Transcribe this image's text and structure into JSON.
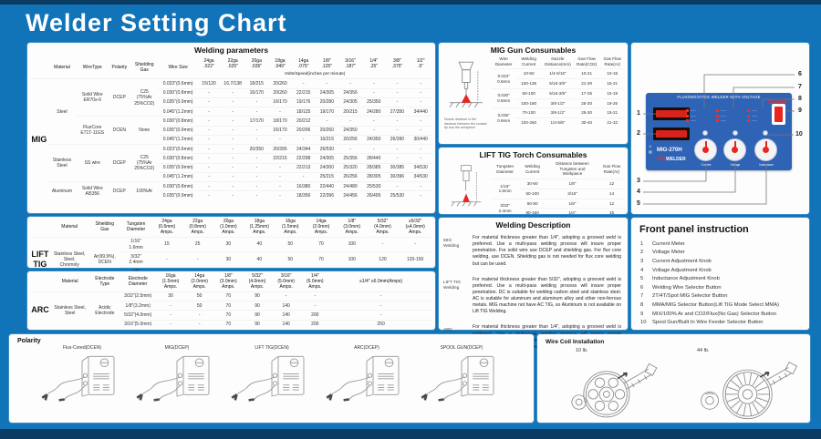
{
  "title": "Welder Setting Chart",
  "colors": {
    "background": "#1174b9",
    "panel": "#fdfdfe",
    "accent_red": "#e8251f",
    "machine_blue": "#2f63b5",
    "dark_strip": "#0a3c63"
  },
  "welding_parameters": {
    "title": "Welding parameters",
    "left_label": "MIG",
    "subheader": "Volts/Speed(inches per minute)",
    "base_headers": [
      "Material",
      "WireType",
      "Polarity",
      "Shielding\nGas",
      "Wire Size"
    ],
    "gauge_headers": [
      "24ga\n.022\"",
      "22ga\n.025\"",
      "20ga\n.035\"",
      "18ga\n.049\"",
      "14ga\n.075\"",
      "1/8\"\n.125\"",
      "3/16\"\n.187\"",
      "1/4\"\n.25\"",
      "3/8\"\n.375\"",
      "1/2\"\n.5\""
    ],
    "groups": [
      {
        "material": "Steel",
        "subgroups": [
          {
            "wire_type": "Solid Wire\nER70s-6",
            "polarity": "DCEP",
            "gas": "C25\n(75%Ar\n25%CO2)",
            "rows": [
              {
                "size": "0.023\"(0.6mm)",
                "values": [
                  "15/120",
                  "16.7/138",
                  "18/215",
                  "20/260",
                  "-",
                  "-",
                  "-",
                  "-",
                  "-",
                  "-"
                ]
              },
              {
                "size": "0.030\"(0.8mm)",
                "values": [
                  "-",
                  "-",
                  "16/170",
                  "20/260",
                  "22/215",
                  "24/305",
                  "24/356",
                  "-",
                  "-",
                  "-"
                ]
              },
              {
                "size": "0.035\"(0.9mm)",
                "values": [
                  "-",
                  "-",
                  "-",
                  "16/170",
                  "19/176",
                  "20/280",
                  "24/305",
                  "25/350",
                  "-",
                  "-"
                ]
              },
              {
                "size": "0.045\"(1.2mm)",
                "values": [
                  "-",
                  "-",
                  "-",
                  "-",
                  "18/125",
                  "19/170",
                  "20/215",
                  "24/280",
                  "27/350",
                  "34/440"
                ]
              }
            ]
          },
          {
            "wire_type": "FluxCore\nE71T-11GS",
            "polarity": "DCEN",
            "gas": "None",
            "rows": [
              {
                "size": "0.030\"(0.8mm)",
                "values": [
                  "-",
                  "-",
                  "17/170",
                  "18/170",
                  "20/212",
                  "-",
                  "-",
                  "-",
                  "-",
                  "-"
                ]
              },
              {
                "size": "0.035\"(0.9mm)",
                "values": [
                  "-",
                  "-",
                  "-",
                  "16/170",
                  "20/206",
                  "20/260",
                  "24/350",
                  "-",
                  "-",
                  "-"
                ]
              },
              {
                "size": "0.045\"(1.2mm)",
                "values": [
                  "-",
                  "-",
                  "-",
                  "-",
                  "-",
                  "16/215",
                  "20/256",
                  "24/350",
                  "26/390",
                  "30/440"
                ]
              }
            ]
          }
        ]
      },
      {
        "material": "Stainless\nSteel",
        "subgroups": [
          {
            "wire_type": "SS wire",
            "polarity": "DCEP",
            "gas": "C25\n(75%Ar\n25%CO2)",
            "rows": [
              {
                "size": "0.023\"(0.6mm)",
                "values": [
                  "-",
                  "-",
                  "20/350",
                  "20/395",
                  "24/344",
                  "26/530",
                  "-",
                  "-",
                  "-",
                  "-"
                ]
              },
              {
                "size": "0.030\"(0.8mm)",
                "values": [
                  "-",
                  "-",
                  "-",
                  "22/215",
                  "22/298",
                  "24/305",
                  "25/356",
                  "28/440",
                  "-",
                  "-"
                ]
              },
              {
                "size": "0.035\"(0.9mm)",
                "values": [
                  "-",
                  "-",
                  "-",
                  "-",
                  "22/213",
                  "24/300",
                  "25/320",
                  "28/385",
                  "30/385",
                  "34/530"
                ]
              },
              {
                "size": "0.045\"(1.2mm)",
                "values": [
                  "-",
                  "-",
                  "-",
                  "-",
                  "-",
                  "25/215",
                  "26/256",
                  "28/305",
                  "30/396",
                  "34/530"
                ]
              }
            ]
          }
        ]
      },
      {
        "material": "Aluminum",
        "subgroups": [
          {
            "wire_type": "Solid Wire\nAl5356",
            "polarity": "DCEP",
            "gas": "100%Ar",
            "rows": [
              {
                "size": "0.030\"(0.8mm)",
                "values": [
                  "-",
                  "-",
                  "-",
                  "-",
                  "16/380",
                  "22/440",
                  "24/480",
                  "25/530",
                  "-",
                  "-"
                ]
              },
              {
                "size": "0.035\"(0.9mm)",
                "values": [
                  "-",
                  "-",
                  "-",
                  "-",
                  "18/356",
                  "22/396",
                  "24/456",
                  "26/495",
                  "25/530",
                  "-"
                ]
              }
            ]
          }
        ]
      }
    ]
  },
  "lift_tig_parameters": {
    "left_label": "LIFT\nTIG",
    "headers": [
      "Material",
      "Shielding\nGas",
      "Tungsten\nDiameter"
    ],
    "gauge_headers": [
      "24ga\n(0.6mm)\nAmps.",
      "22ga\n(0.8mm)\nAmps.",
      "20ga\n(1.0mm)\nAmps.",
      "18ga\n(1.25mm)\nAmps.",
      "16ga\n(1.5mm)\nAmps.",
      "14ga\n(2.0mm)\nAmps.",
      "1/8\"\n(3.0mm)\nAmps.",
      "5/32\"\n(4.0mm)\nAmps.",
      "≥5/32\"\n(≥4.0mm)\nAmps."
    ],
    "material": "Stainless Steel,\nSteel,\nChromoly",
    "col3": "Ar(99.9%),\nDCEN",
    "rows": [
      {
        "size": "1/16\"\n1.6mm",
        "values": [
          "15",
          "25",
          "30",
          "40",
          "50",
          "70",
          "100",
          "-",
          "-"
        ]
      },
      {
        "size": "3/32\"\n2.4mm",
        "values": [
          "-",
          "-",
          "30",
          "40",
          "50",
          "70",
          "100",
          "120",
          "120-150"
        ]
      },
      {
        "size": "1/8\"\n3.2mm",
        "values": [
          "-",
          "-",
          "30",
          "40",
          "50",
          "70",
          "100",
          "120",
          "120-150"
        ]
      }
    ]
  },
  "arc_parameters": {
    "left_label": "ARC",
    "headers": [
      "Material",
      "Electrode\nType",
      "Electrode\nDiameter"
    ],
    "gauge_headers": [
      "16ga\n(1.5mm)\nAmps.",
      "14ga\n(2.0mm)\nAmps.",
      "1/8\"\n(3.0mm)\nAmps.",
      "5/32\"\n(4.0mm)\nAmps.",
      "3/16\"\n(5.0mm)\nAmps.",
      "1/4\"\n(6.0mm)\nAmps.",
      "≥1/4\" ≥6.0mm(Amps)"
    ],
    "material": "Stainless Steel,\nSteel",
    "col3": "Acidic\nElectrode",
    "rows": [
      {
        "size": "3/32\"(2.5mm)",
        "values": [
          "30",
          "50",
          "70",
          "90",
          "-",
          "-",
          "-"
        ]
      },
      {
        "size": "1/8\"(3.2mm)",
        "values": [
          "-",
          "50",
          "70",
          "90",
          "140",
          "-",
          "-"
        ]
      },
      {
        "size": "5/32\"(4.0mm)",
        "values": [
          "-",
          "-",
          "70",
          "90",
          "140",
          "200",
          "-"
        ]
      },
      {
        "size": "3/16\"(5.0mm)",
        "values": [
          "-",
          "-",
          "70",
          "90",
          "140",
          "200",
          "250"
        ]
      }
    ]
  },
  "mig_gun_consumables": {
    "title": "MIG Gun Consumables",
    "headers": [
      "Wire\nDiameter",
      "Welding\nCurrent",
      "Nozzle\nDistance(mm)",
      "Gas Flow\nRate(CO2)",
      "Gas Flow\nRate(Ar)"
    ],
    "caption": "Nozzle distance is the distance between the contact tip and the workpiece",
    "groups": [
      {
        "diameter": "0.023\"\n0.6mm",
        "rows": [
          [
            "10-50",
            "1/4-5/16\"",
            "10-21",
            "10-15"
          ],
          [
            "100-135",
            "5/16-3/8\"",
            "21-30",
            "15-21"
          ]
        ]
      },
      {
        "diameter": "0.030\"\n0.8mm",
        "rows": [
          [
            "50-100",
            "5/16-3/8\"",
            "17-25",
            "10-19"
          ],
          [
            "100-180",
            "3/8-1/2\"",
            "25-30",
            "19-25"
          ]
        ]
      },
      {
        "diameter": "0.035\"\n0.9mm",
        "rows": [
          [
            "70-100",
            "3/8-1/2\"",
            "25-30",
            "15-21"
          ],
          [
            "100-250",
            "1/2-5/8\"",
            "30-40",
            "21-32"
          ]
        ]
      }
    ]
  },
  "lift_tig_consumables": {
    "title": "LIFT TIG Torch Consumables",
    "headers": [
      "Tungsten\nDiameter",
      "Welding\nCurrent",
      "Distance between\nTungsten and\nWorkpiece",
      "Gas Flow\nRate(Ar)"
    ],
    "caption": "Distance between tungsten and workpiece(mm)",
    "groups": [
      {
        "diameter": "1/16\"\n1.6mm",
        "rows": [
          [
            "30-50",
            "1/8\"",
            "12"
          ],
          [
            "50-100",
            "3/16\"",
            "14"
          ]
        ]
      },
      {
        "diameter": "3/32\"\n2.4mm",
        "rows": [
          [
            "50-80",
            "1/8\"",
            "12"
          ],
          [
            "80-150",
            "1/4\"",
            "15"
          ]
        ]
      },
      {
        "diameter": "1/8\"\n3.2mm",
        "rows": [
          [
            "50-100",
            "1/8\"",
            "15"
          ],
          [
            "100-250",
            "1/4\"",
            "18"
          ]
        ]
      }
    ]
  },
  "welding_description": {
    "title": "Welding Description",
    "entries": [
      {
        "label": "MIG\nWelding",
        "text": "For material thickness greater than 1/4\", adopting a grooved weld is preferred. Use a multi-pass welding process will insure proper penetration. For solid wire use DCEP and shielding gas. For flux core welding, use DCEN. Shielding gas is not needed for flux core welding but can be used."
      },
      {
        "label": "LIFT TIG\nWelding",
        "text": "For material thickness greater than 5/32\", adopting a grooved weld is preferred. Use a multi-pass welding process will insure proper penetration. DC is suitable for welding carbon steel and stainless steel. AC is suitable for aluminum and aluminum alloy and other non-ferrous metals. MIG machine not have AC TIG, so Aluminum is not available on Lift TIG Welding."
      },
      {
        "label": "ARC\nWelding",
        "text": "For material thickness greater than 1/4\", adopting a grooved weld is preferred. Use a multi-pass welding process will insure proper penetration. When using acidic electrodes, DCEP and DCEN can be used. Alkaline electrodes use DCEN and cellulose electrodes use DCEP."
      }
    ]
  },
  "front_panel": {
    "title": "Front panel instruction",
    "items": [
      "Current Meter",
      "Voltage Meter",
      "Current Adjustment Knob",
      "Voltage Adjustment Knob",
      "Inductance Adjustment Knob",
      "Welding Wire Selector Button",
      "2T/4T/Spot MIG Selector Button",
      "MMA/MIG Selector Button(Lift TIG Mode Select MMA)",
      "MIX/100% Ar and CO2/Flux(No Gas) Selector Button",
      "Spool Gun/Built In Wire Feeder Selector Button"
    ]
  },
  "machine": {
    "header": "FLUX/MIG/STICK WELDER WITH VOLTAGE",
    "voltage": "220/480V",
    "model": "MIG-270H",
    "brand_red": "YES",
    "brand_white": "WELDER",
    "knob_labels": [
      "Current",
      "Voltage",
      "Inductance"
    ],
    "callouts": [
      "1",
      "2",
      "3",
      "4",
      "5",
      "6",
      "7",
      "8",
      "9",
      "10"
    ]
  },
  "polarity": {
    "title": "Polarity",
    "items": [
      "Flux-Cored(DCEN)",
      "MIG(DCEP)",
      "LIFT TIG(DCEN)",
      "ARC(DCEP)",
      "SPOOL GUN(DCEP)"
    ]
  },
  "wire_coil": {
    "title": "Wire Coil Installation",
    "items": [
      "10 lb.",
      "44 lb."
    ]
  }
}
